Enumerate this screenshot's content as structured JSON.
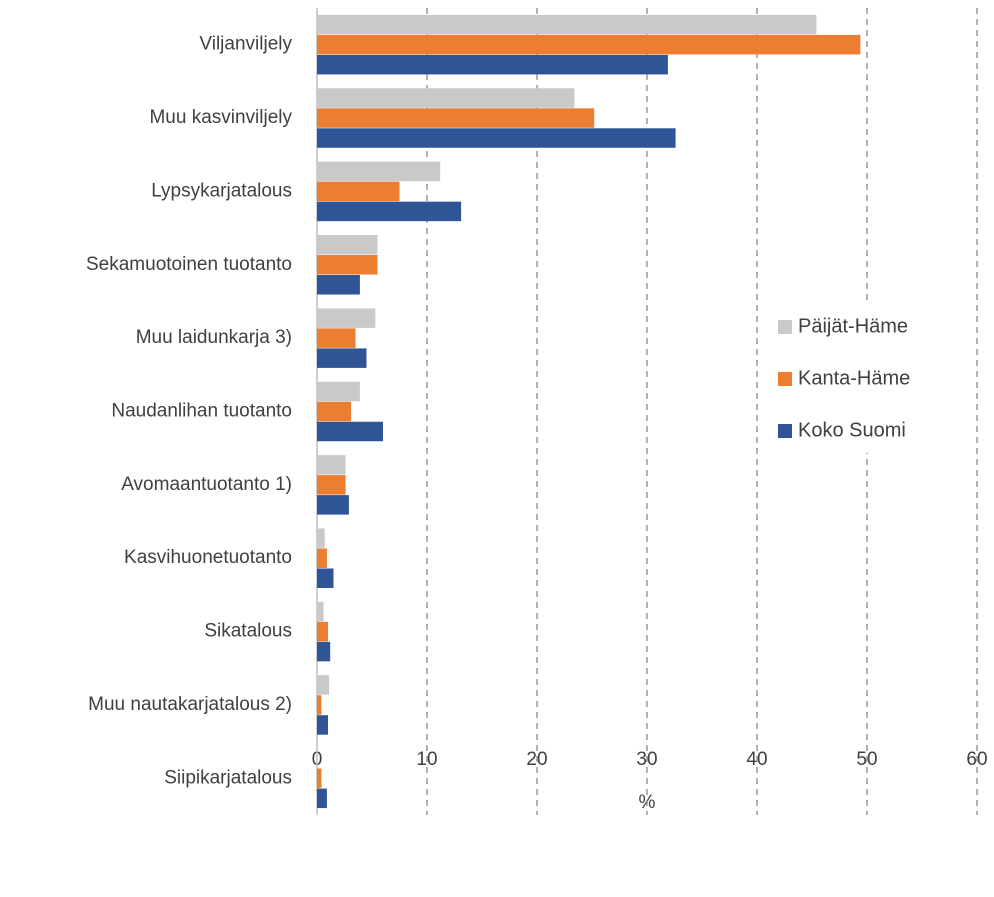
{
  "chart_data": {
    "type": "barh",
    "categories": [
      "Viljanviljely",
      "Muu kasvinviljely",
      "Lypsykarjatalous",
      "Sekamuotoinen tuotanto",
      "Muu laidunkarja 3)",
      "Naudanlihan tuotanto",
      "Avomaantuotanto 1)",
      "Kasvihuonetuotanto",
      "Sikatalous",
      "Muu nautakarjatalous 2)",
      "Siipikarjatalous"
    ],
    "series": [
      {
        "name": "Päijät-Häme",
        "color": "#c9c9c9",
        "values": [
          45.4,
          23.4,
          11.2,
          5.5,
          5.3,
          3.9,
          2.6,
          0.7,
          0.6,
          1.1,
          0
        ]
      },
      {
        "name": "Kanta-Häme",
        "color": "#ed7d31",
        "values": [
          49.4,
          25.2,
          7.5,
          5.5,
          3.5,
          3.1,
          2.6,
          0.9,
          1.0,
          0.4,
          0.4
        ]
      },
      {
        "name": "Koko Suomi",
        "color": "#2f5597",
        "values": [
          31.9,
          32.6,
          13.1,
          3.9,
          4.5,
          6.0,
          2.9,
          1.5,
          1.2,
          1.0,
          0.9
        ]
      }
    ],
    "x_label": "%",
    "xlim": [
      0,
      60
    ],
    "xticks": [
      0,
      10,
      20,
      30,
      40,
      50,
      60
    ],
    "grid": true,
    "legend_position": "right"
  }
}
